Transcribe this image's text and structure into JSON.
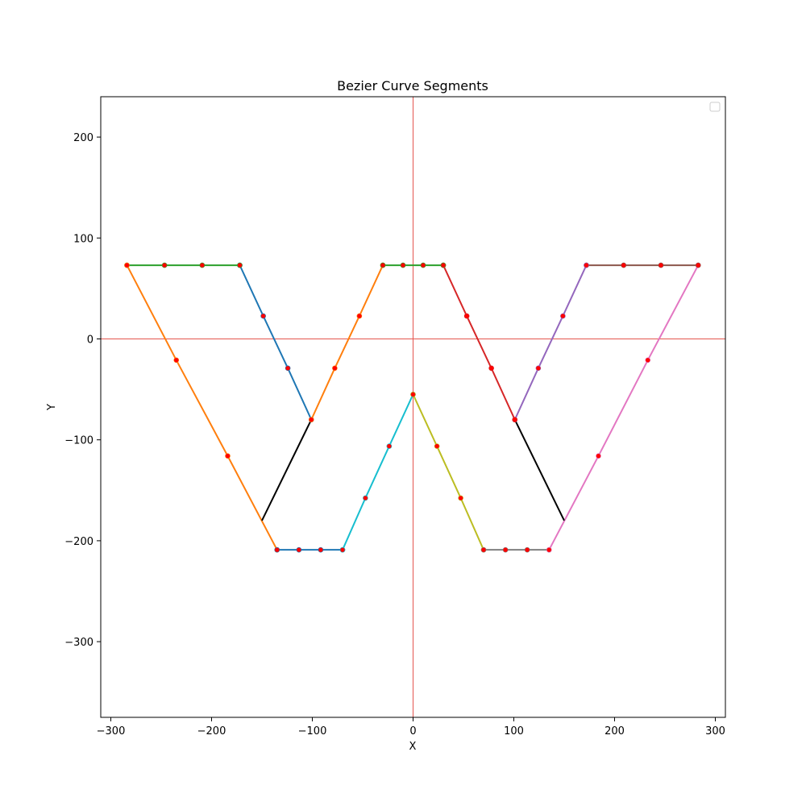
{
  "chart_data": {
    "type": "line",
    "title": "Bezier Curve Segments",
    "xlabel": "X",
    "ylabel": "Y",
    "xlim": [
      -310,
      310
    ],
    "ylim": [
      -375,
      240
    ],
    "xticks": [
      -300,
      -200,
      -100,
      0,
      100,
      200,
      300
    ],
    "yticks": [
      -300,
      -200,
      -100,
      0,
      100,
      200
    ],
    "xtick_labels": [
      "−300",
      "−200",
      "−100",
      "0",
      "100",
      "200",
      "300"
    ],
    "ytick_labels": [
      "−300",
      "−200",
      "−100",
      "0",
      "100",
      "200"
    ],
    "reference_lines": {
      "x": 0,
      "y": 0,
      "color": "#e5554f"
    },
    "grid": false,
    "legend": {
      "placement": "upper right",
      "entries": []
    },
    "point_color": "#ff0000",
    "series": [
      {
        "color": "#1f77b4",
        "points": [
          [
            -172,
            73
          ],
          [
            -148.7,
            22.7
          ],
          [
            -124.3,
            -29
          ],
          [
            -101,
            -80
          ]
        ]
      },
      {
        "color": "#ff7f0e",
        "points": [
          [
            -101,
            -80
          ],
          [
            -77.7,
            -29
          ],
          [
            -53.3,
            22.7
          ],
          [
            -30,
            73
          ]
        ]
      },
      {
        "color": "#2ca02c",
        "points": [
          [
            -284,
            73
          ],
          [
            -246.7,
            73
          ],
          [
            -209.3,
            73
          ],
          [
            -172,
            73
          ]
        ]
      },
      {
        "color": "#ff7f0e",
        "points": [
          [
            -284,
            73
          ],
          [
            -235,
            -21
          ],
          [
            -184,
            -116
          ],
          [
            -135,
            -209
          ]
        ]
      },
      {
        "color": "#1f77b4",
        "points": [
          [
            -135,
            -209
          ],
          [
            -113.3,
            -209
          ],
          [
            -91.7,
            -209
          ],
          [
            -70,
            -209
          ]
        ]
      },
      {
        "color": "#17becf",
        "points": [
          [
            -70,
            -209
          ],
          [
            -47.3,
            -157.7
          ],
          [
            -23.7,
            -106.3
          ],
          [
            0,
            -55
          ]
        ]
      },
      {
        "color": "#bcbd22",
        "points": [
          [
            0,
            -55
          ],
          [
            23.7,
            -106.3
          ],
          [
            47.3,
            -157.7
          ],
          [
            70,
            -209
          ]
        ]
      },
      {
        "color": "#7f7f7f",
        "points": [
          [
            70,
            -209
          ],
          [
            91.7,
            -209
          ],
          [
            113.3,
            -209
          ],
          [
            135,
            -209
          ]
        ]
      },
      {
        "color": "#e377c2",
        "points": [
          [
            135,
            -209
          ],
          [
            184,
            -116
          ],
          [
            233,
            -21
          ],
          [
            283,
            73
          ]
        ]
      },
      {
        "color": "#8c564b",
        "points": [
          [
            172,
            73
          ],
          [
            209,
            73
          ],
          [
            246,
            73
          ],
          [
            283,
            73
          ]
        ]
      },
      {
        "color": "#9467bd",
        "points": [
          [
            101,
            -80
          ],
          [
            124.3,
            -29
          ],
          [
            148.7,
            22.7
          ],
          [
            172,
            73
          ]
        ]
      },
      {
        "color": "#d62728",
        "points": [
          [
            30,
            73
          ],
          [
            53.3,
            22.7
          ],
          [
            77.7,
            -29
          ],
          [
            101,
            -80
          ]
        ]
      },
      {
        "color": "#2ca02c",
        "points": [
          [
            -30,
            73
          ],
          [
            -10,
            73
          ],
          [
            10,
            73
          ],
          [
            30,
            73
          ]
        ]
      },
      {
        "color": "#000000",
        "markers": false,
        "points": [
          [
            -150,
            -180
          ],
          [
            -101,
            -80
          ]
        ]
      },
      {
        "color": "#000000",
        "markers": false,
        "points": [
          [
            101,
            -80
          ],
          [
            150,
            -180
          ]
        ]
      }
    ]
  }
}
